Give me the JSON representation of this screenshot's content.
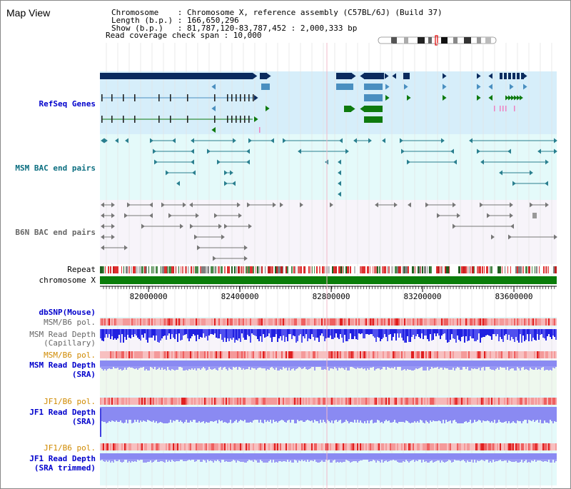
{
  "window": {
    "title": "Map View"
  },
  "header": {
    "lines": [
      "Chromosome    : Chromosome X, reference assembly (C57BL/6J) (Build 37)",
      "Length (b.p.) : 166,650,296",
      "Show (b.p.)   : 81,787,120-83,787,452 : 2,000,333 bp",
      "Read coverage check span : 10,000"
    ]
  },
  "colors": {
    "refseq_bg": "#d6eefa",
    "bac_msm_bg": "#e4fafa",
    "bac_b6n_bg": "#f7f4fa",
    "gene_navy": "#0b2b5e",
    "gene_blue": "#4a8fc0",
    "gene_green": "#0e7a0e",
    "msm_teal": "#2a7f8f",
    "b6n_gray": "#777777",
    "chromosome_green": "#0a7d0a",
    "snp_red": "#e04040",
    "depth_blue_dark": "#2020e0",
    "depth_blue_light": "#8a8af2",
    "label_blue": "#0000cc",
    "label_teal": "#0b6e80",
    "label_gray": "#666666",
    "label_orange": "#d08a00"
  },
  "tracks": {
    "refseq": "RefSeq Genes",
    "msm_bac": "MSM BAC end pairs",
    "b6n_bac": "B6N BAC end pairs",
    "repeat": "Repeat",
    "chromosome": "chromosome X",
    "dbsnp": "dbSNP(Mouse)",
    "msm_b6_pol_1": "MSM/B6 pol.",
    "msm_read_depth_capillary_1": "MSM Read Depth",
    "msm_read_depth_capillary_2": "(Capillary)",
    "msm_b6_pol_2": "MSM/B6 pol.",
    "msm_read_depth_sra_1": "MSM Read Depth",
    "msm_read_depth_sra_2": "(SRA)",
    "jf1_b6_pol_1": "JF1/B6 pol.",
    "jf1_read_depth_sra_1": "JF1 Read Depth",
    "jf1_read_depth_sra_2": "(SRA)",
    "jf1_b6_pol_2": "JF1/B6 pol.",
    "jf1_read_depth_trim_1": "JF1 Read Depth",
    "jf1_read_depth_trim_2": "(SRA trimmed)"
  },
  "axis": {
    "start_bp": 81787120,
    "end_bp": 83787452,
    "ticks": [
      "82000000",
      "82400000",
      "82800000",
      "83200000",
      "83600000"
    ]
  }
}
